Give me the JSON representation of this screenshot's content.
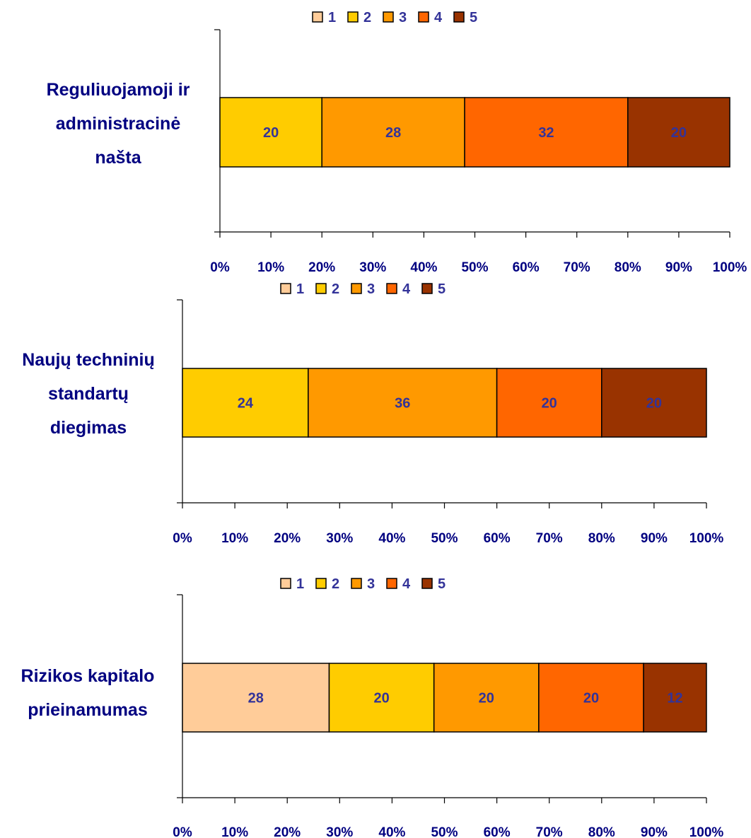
{
  "series_colors": [
    "#ffcc99",
    "#ffcc00",
    "#ff9900",
    "#ff6600",
    "#993300"
  ],
  "chart_data": [
    {
      "type": "bar",
      "orientation": "horizontal",
      "stacked": "percent",
      "categories": [
        "Reguliuojamoji ir administracinė našta"
      ],
      "category_lines": [
        "Reguliuojamoji ir",
        "administracinė",
        "našta"
      ],
      "series": [
        {
          "name": "1",
          "values": [
            0
          ]
        },
        {
          "name": "2",
          "values": [
            20
          ]
        },
        {
          "name": "3",
          "values": [
            28
          ]
        },
        {
          "name": "4",
          "values": [
            32
          ]
        },
        {
          "name": "5",
          "values": [
            20
          ]
        }
      ],
      "xlim": [
        0,
        100
      ],
      "xticks": [
        "0%",
        "10%",
        "20%",
        "30%",
        "40%",
        "50%",
        "60%",
        "70%",
        "80%",
        "90%",
        "100%"
      ],
      "legend": "top",
      "grid": false
    },
    {
      "type": "bar",
      "orientation": "horizontal",
      "stacked": "percent",
      "categories": [
        "Naujų techninių standartų diegimas"
      ],
      "category_lines": [
        "Naujų techninių",
        "standartų",
        "diegimas"
      ],
      "series": [
        {
          "name": "1",
          "values": [
            0
          ]
        },
        {
          "name": "2",
          "values": [
            24
          ]
        },
        {
          "name": "3",
          "values": [
            36
          ]
        },
        {
          "name": "4",
          "values": [
            20
          ]
        },
        {
          "name": "5",
          "values": [
            20
          ]
        }
      ],
      "xlim": [
        0,
        100
      ],
      "xticks": [
        "0%",
        "10%",
        "20%",
        "30%",
        "40%",
        "50%",
        "60%",
        "70%",
        "80%",
        "90%",
        "100%"
      ],
      "legend": "top",
      "grid": false
    },
    {
      "type": "bar",
      "orientation": "horizontal",
      "stacked": "percent",
      "categories": [
        "Rizikos kapitalo prieinamumas"
      ],
      "category_lines": [
        "Rizikos kapitalo",
        "prieinamumas"
      ],
      "series": [
        {
          "name": "1",
          "values": [
            28
          ]
        },
        {
          "name": "2",
          "values": [
            20
          ]
        },
        {
          "name": "3",
          "values": [
            20
          ]
        },
        {
          "name": "4",
          "values": [
            20
          ]
        },
        {
          "name": "5",
          "values": [
            12
          ]
        }
      ],
      "xlim": [
        0,
        100
      ],
      "xticks": [
        "0%",
        "10%",
        "20%",
        "30%",
        "40%",
        "50%",
        "60%",
        "70%",
        "80%",
        "90%",
        "100%"
      ],
      "legend": "top",
      "grid": false
    }
  ]
}
